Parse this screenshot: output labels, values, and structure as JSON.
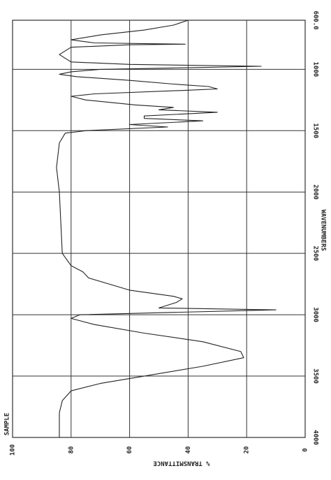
{
  "chart_data": {
    "type": "line",
    "xlabel": "WAVENUMBERS",
    "ylabel": "% TRANSMITTANCE",
    "annotation": "SAMPLE",
    "x": [
      4000,
      3800,
      3700,
      3620,
      3560,
      3500,
      3420,
      3350,
      3300,
      3220,
      3150,
      3080,
      3030,
      3000,
      2960,
      2945,
      2900,
      2870,
      2850,
      2800,
      2700,
      2650,
      2600,
      2500,
      2000,
      1800,
      1600,
      1520,
      1500,
      1470,
      1450,
      1420,
      1400,
      1380,
      1350,
      1330,
      1310,
      1290,
      1250,
      1220,
      1200,
      1170,
      1160,
      1140,
      1120,
      1090,
      1060,
      1040,
      1020,
      1000,
      975,
      960,
      940,
      880,
      820,
      800,
      795,
      785,
      760,
      720,
      680,
      640,
      600
    ],
    "values": [
      84,
      84,
      83,
      80,
      70,
      55,
      35,
      21,
      22,
      35,
      55,
      72,
      80,
      77,
      10,
      50,
      44,
      42,
      45,
      60,
      74,
      76,
      80,
      83,
      84,
      85,
      84,
      82,
      75,
      47,
      60,
      35,
      55,
      55,
      30,
      50,
      45,
      58,
      75,
      80,
      72,
      40,
      30,
      33,
      45,
      60,
      78,
      84,
      80,
      70,
      15,
      60,
      80,
      84,
      80,
      60,
      41,
      72,
      80,
      70,
      55,
      45,
      40
    ],
    "color": "#222222",
    "xlim": [
      600,
      4000
    ],
    "xticks": [
      {
        "value": 600,
        "label": "600.0"
      },
      1000,
      1500,
      2000,
      2500,
      3000,
      3500,
      4000
    ],
    "ylim": [
      0,
      100
    ],
    "yticks": [
      100,
      80,
      60,
      40,
      20,
      0
    ],
    "grid": true
  }
}
